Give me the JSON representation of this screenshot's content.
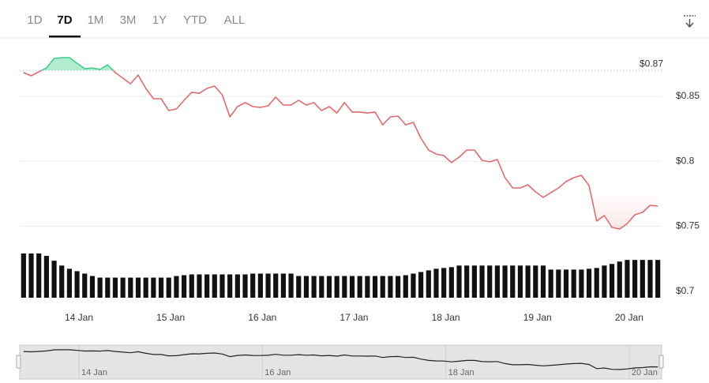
{
  "tabs": {
    "items": [
      "1D",
      "7D",
      "1M",
      "3M",
      "1Y",
      "YTD",
      "ALL"
    ],
    "selected": 1
  },
  "chart_data": {
    "type": "line",
    "values": [
      0.8683,
      0.8658,
      0.8689,
      0.8719,
      0.8792,
      0.8798,
      0.8798,
      0.8755,
      0.8713,
      0.8719,
      0.8707,
      0.8743,
      0.8683,
      0.864,
      0.8597,
      0.8664,
      0.8561,
      0.8482,
      0.8482,
      0.8391,
      0.8403,
      0.847,
      0.8531,
      0.8524,
      0.8561,
      0.8579,
      0.8512,
      0.8342,
      0.8421,
      0.8452,
      0.8421,
      0.8415,
      0.8427,
      0.8494,
      0.8433,
      0.8433,
      0.847,
      0.8433,
      0.8452,
      0.8391,
      0.8421,
      0.8372,
      0.8452,
      0.8379,
      0.8379,
      0.8372,
      0.8379,
      0.8281,
      0.8342,
      0.8348,
      0.8281,
      0.83,
      0.8178,
      0.8087,
      0.8056,
      0.8044,
      0.799,
      0.8032,
      0.8087,
      0.8087,
      0.8008,
      0.7996,
      0.8014,
      0.7874,
      0.7795,
      0.7795,
      0.7819,
      0.7765,
      0.7722,
      0.7759,
      0.7795,
      0.7844,
      0.7874,
      0.7892,
      0.7813,
      0.754,
      0.7582,
      0.7491,
      0.7479,
      0.7521,
      0.7588,
      0.7607,
      0.7661,
      0.7655
    ],
    "reference": {
      "value": 0.87,
      "label": "$0.87"
    },
    "colors": {
      "above": "#3ccf8a",
      "below": "#e36a6a"
    },
    "volume": {
      "color": "#111111",
      "values": [
        55,
        55,
        55,
        52,
        46,
        40,
        36,
        33,
        30,
        27,
        25,
        25,
        25,
        25,
        25,
        25,
        25,
        25,
        25,
        25,
        27,
        28,
        29,
        29,
        29,
        29,
        29,
        29,
        29,
        29,
        30,
        30,
        30,
        30,
        30,
        30,
        27,
        27,
        27,
        27,
        27,
        27,
        27,
        27,
        27,
        27,
        27,
        27,
        27,
        27,
        28,
        30,
        32,
        34,
        36,
        37,
        38,
        40,
        40,
        40,
        40,
        40,
        40,
        40,
        40,
        40,
        40,
        40,
        40,
        35,
        35,
        35,
        35,
        35,
        36,
        37,
        40,
        42,
        45,
        47,
        47,
        47,
        47,
        47
      ]
    },
    "xlim": [
      0,
      84
    ],
    "xticks": [
      {
        "value": 7.75,
        "label": "14 Jan"
      },
      {
        "value": 19.75,
        "label": "15 Jan"
      },
      {
        "value": 31.75,
        "label": "16 Jan"
      },
      {
        "value": 43.75,
        "label": "17 Jan"
      },
      {
        "value": 55.75,
        "label": "18 Jan"
      },
      {
        "value": 67.75,
        "label": "19 Jan"
      },
      {
        "value": 79.75,
        "label": "20 Jan"
      }
    ],
    "ylim": [
      0.695,
      0.895
    ],
    "yticks": [
      {
        "value": 0.7,
        "label": "$0.7"
      },
      {
        "value": 0.75,
        "label": "$0.75"
      },
      {
        "value": 0.8,
        "label": "$0.8"
      },
      {
        "value": 0.85,
        "label": "$0.85"
      }
    ],
    "grid": true
  }
}
